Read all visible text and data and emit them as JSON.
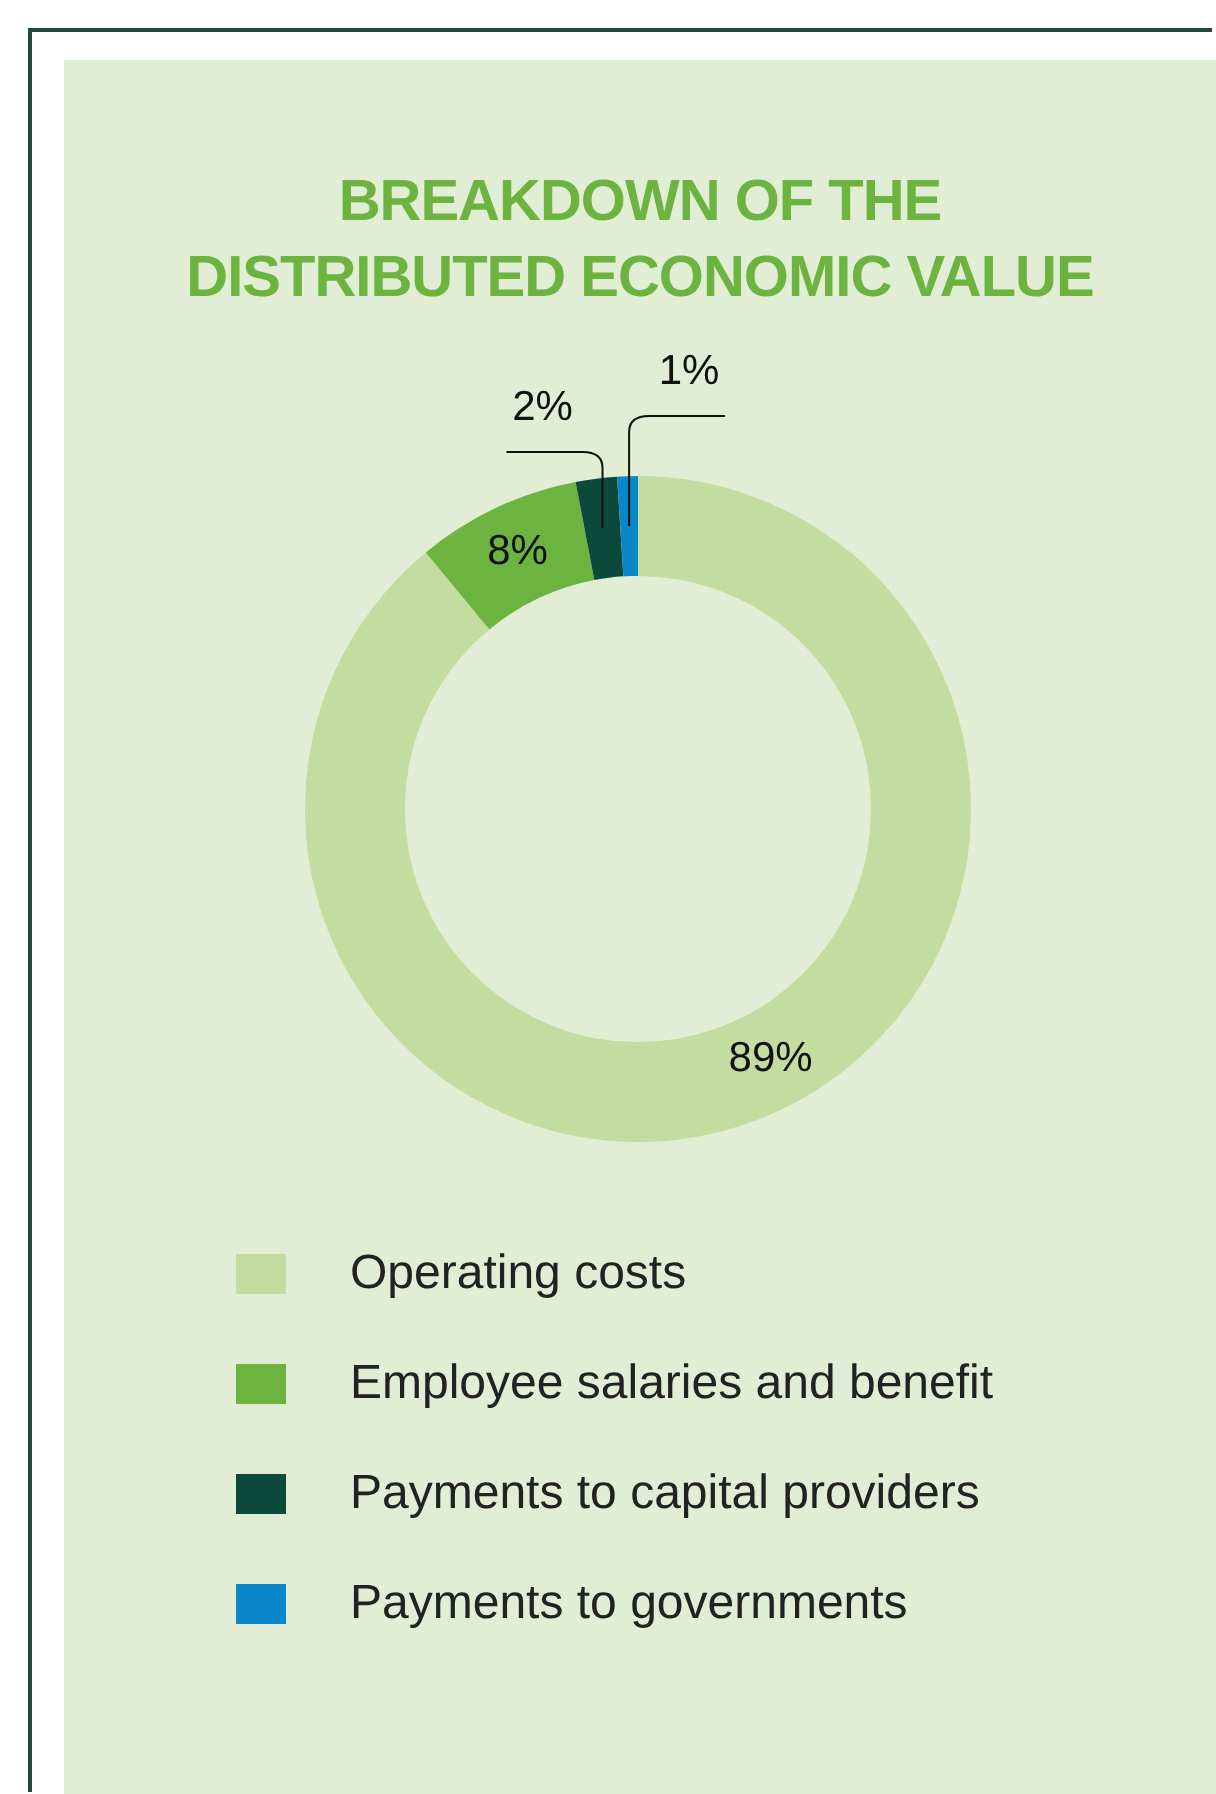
{
  "chart_data": {
    "type": "donut",
    "title": "BREAKDOWN OF THE\nDISTRIBUTED ECONOMIC VALUE",
    "categories": [
      "Operating costs",
      "Employee salaries and benefit",
      "Payments to capital providers",
      "Payments to governments"
    ],
    "values": [
      89,
      8,
      2,
      1
    ],
    "colors": [
      "#c3dca0",
      "#6db33f",
      "#0b4a3a",
      "#0a87c8"
    ],
    "value_labels": [
      "89%",
      "8%",
      "2%",
      "1%"
    ],
    "legend": "bottom"
  }
}
